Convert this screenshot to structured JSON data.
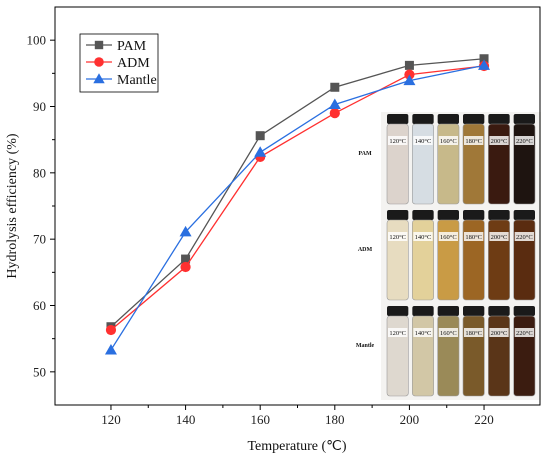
{
  "chart_data": {
    "type": "line",
    "title": "",
    "xlabel": "Temperature (℃)",
    "ylabel": "Hydrolysis efficiency (%)",
    "x": [
      120,
      140,
      160,
      180,
      200,
      220
    ],
    "xlim": [
      105,
      235
    ],
    "ylim": [
      45,
      105
    ],
    "xticks": [
      120,
      140,
      160,
      180,
      200,
      220
    ],
    "yticks": [
      50,
      60,
      70,
      80,
      90,
      100
    ],
    "grid": false,
    "legend_position": "top-left",
    "series": [
      {
        "name": "PAM",
        "color": "#555555",
        "marker": "square",
        "values": [
          56.8,
          67.0,
          85.6,
          92.9,
          96.2,
          97.2
        ]
      },
      {
        "name": "ADM",
        "color": "#ff3030",
        "marker": "circle",
        "values": [
          56.3,
          65.8,
          82.4,
          89.0,
          94.8,
          96.1
        ]
      },
      {
        "name": "Mantle",
        "color": "#2a6fe0",
        "marker": "triangle",
        "values": [
          53.3,
          71.1,
          83.1,
          90.3,
          93.9,
          96.2
        ]
      }
    ]
  },
  "inset_photos": {
    "rows": [
      {
        "label": "PAM",
        "temps": [
          "120°C",
          "140°C",
          "160°C",
          "180°C",
          "200°C",
          "220°C"
        ],
        "colors": [
          "#dcd3cc",
          "#d6dde3",
          "#c7b98a",
          "#a07838",
          "#3a1a10",
          "#1e1410"
        ]
      },
      {
        "label": "ADM",
        "temps": [
          "120°C",
          "140°C",
          "160°C",
          "180°C",
          "200°C",
          "220°C"
        ],
        "colors": [
          "#e7dcc0",
          "#e3d19a",
          "#c99b45",
          "#9c6624",
          "#6e3c14",
          "#5a2c10"
        ]
      },
      {
        "label": "Mantle",
        "temps": [
          "120°C",
          "140°C",
          "160°C",
          "180°C",
          "200°C",
          "220°C"
        ],
        "colors": [
          "#ded8cf",
          "#d2c7a6",
          "#9a8a58",
          "#7a5a2a",
          "#5a3518",
          "#3b1c10"
        ]
      }
    ]
  }
}
